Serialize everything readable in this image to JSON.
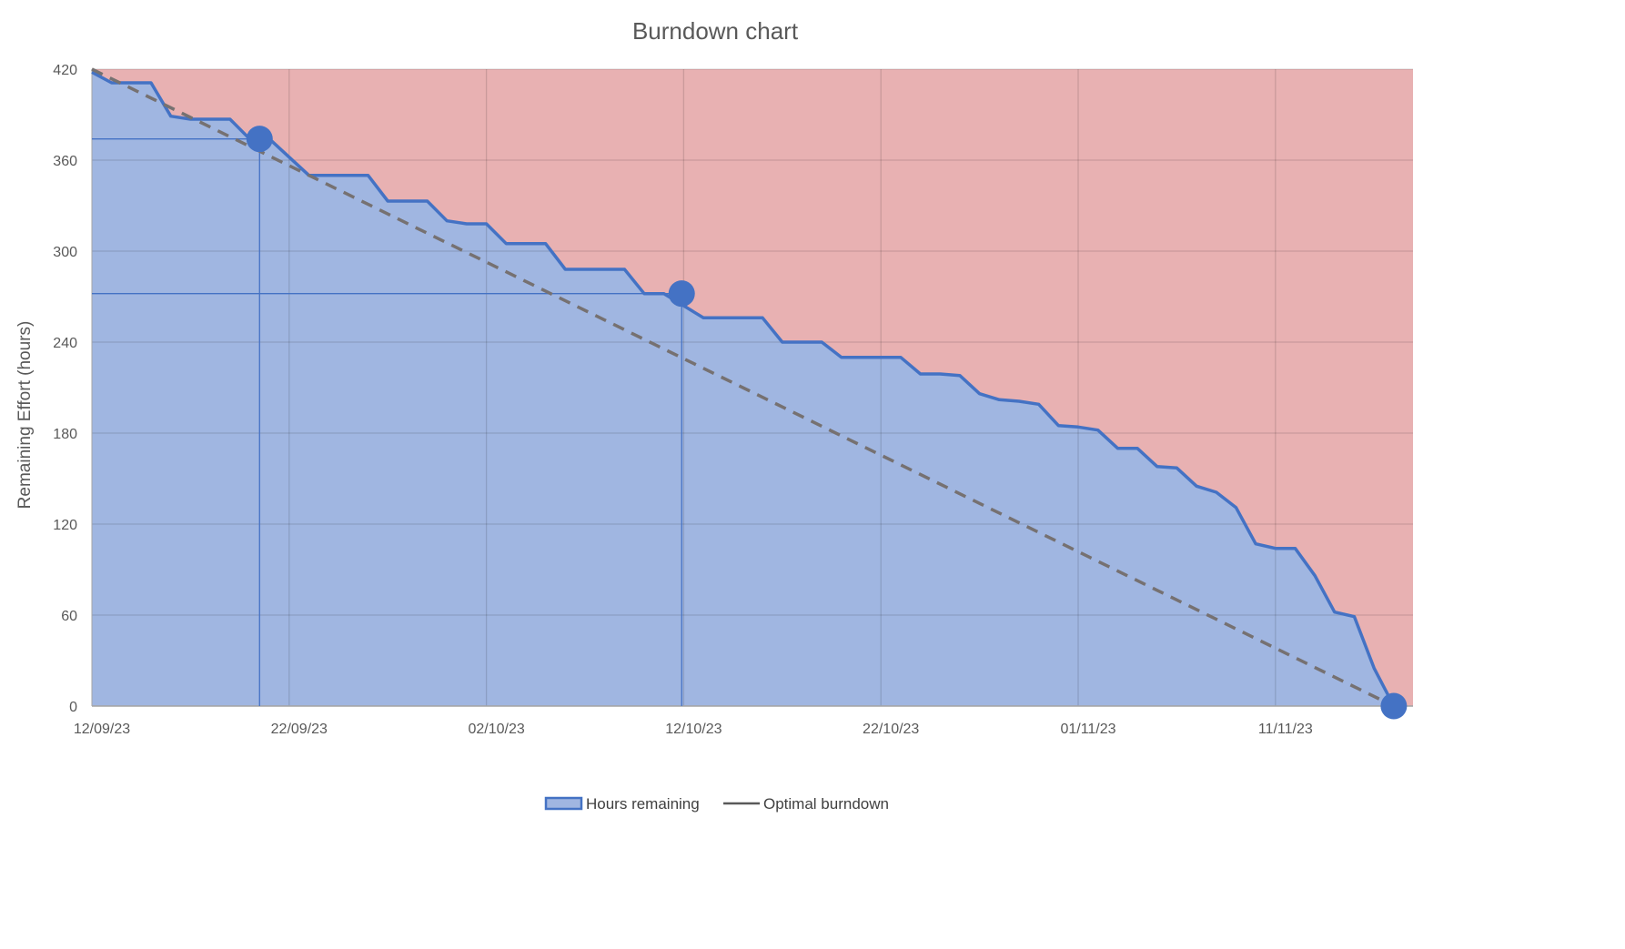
{
  "chart_data": {
    "type": "area",
    "title": "Burndown chart",
    "xlabel": "",
    "ylabel": "Remaining Effort (hours)",
    "ylim": [
      0,
      420
    ],
    "yticks": [
      0,
      60,
      120,
      180,
      240,
      300,
      360,
      420
    ],
    "xlim": [
      "2023-09-12",
      "2023-11-22"
    ],
    "xtick_labels": [
      "12/09/23",
      "22/09/23",
      "02/10/23",
      "12/10/23",
      "22/10/23",
      "01/11/23",
      "11/11/23"
    ],
    "xtick_dates": [
      "2023-09-12",
      "2023-09-22",
      "2023-10-02",
      "2023-10-12",
      "2023-10-22",
      "2023-11-01",
      "2023-11-11"
    ],
    "grid": true,
    "legend_position": "bottom",
    "series": [
      {
        "name": "Hours remaining",
        "kind": "area",
        "color": "#4472C4",
        "fill": "#A0B6E1",
        "points": [
          [
            "2023-09-12",
            418
          ],
          [
            "2023-09-13",
            411
          ],
          [
            "2023-09-14",
            411
          ],
          [
            "2023-09-15",
            411
          ],
          [
            "2023-09-16",
            389
          ],
          [
            "2023-09-17",
            387
          ],
          [
            "2023-09-18",
            387
          ],
          [
            "2023-09-19",
            387
          ],
          [
            "2023-09-20",
            374
          ],
          [
            "2023-09-21",
            374
          ],
          [
            "2023-09-22",
            362
          ],
          [
            "2023-09-23",
            350
          ],
          [
            "2023-09-24",
            350
          ],
          [
            "2023-09-25",
            350
          ],
          [
            "2023-09-26",
            350
          ],
          [
            "2023-09-27",
            333
          ],
          [
            "2023-09-28",
            333
          ],
          [
            "2023-09-29",
            333
          ],
          [
            "2023-09-30",
            320
          ],
          [
            "2023-10-01",
            318
          ],
          [
            "2023-10-02",
            318
          ],
          [
            "2023-10-03",
            305
          ],
          [
            "2023-10-04",
            305
          ],
          [
            "2023-10-05",
            305
          ],
          [
            "2023-10-06",
            288
          ],
          [
            "2023-10-07",
            288
          ],
          [
            "2023-10-08",
            288
          ],
          [
            "2023-10-09",
            288
          ],
          [
            "2023-10-10",
            272
          ],
          [
            "2023-10-11",
            272
          ],
          [
            "2023-10-13",
            256
          ],
          [
            "2023-10-14",
            256
          ],
          [
            "2023-10-15",
            256
          ],
          [
            "2023-10-16",
            256
          ],
          [
            "2023-10-17",
            240
          ],
          [
            "2023-10-18",
            240
          ],
          [
            "2023-10-19",
            240
          ],
          [
            "2023-10-20",
            230
          ],
          [
            "2023-10-21",
            230
          ],
          [
            "2023-10-22",
            230
          ],
          [
            "2023-10-23",
            230
          ],
          [
            "2023-10-24",
            219
          ],
          [
            "2023-10-25",
            219
          ],
          [
            "2023-10-26",
            218
          ],
          [
            "2023-10-27",
            206
          ],
          [
            "2023-10-28",
            202
          ],
          [
            "2023-10-29",
            201
          ],
          [
            "2023-10-30",
            199
          ],
          [
            "2023-10-31",
            185
          ],
          [
            "2023-11-01",
            184
          ],
          [
            "2023-11-02",
            182
          ],
          [
            "2023-11-03",
            170
          ],
          [
            "2023-11-04",
            170
          ],
          [
            "2023-11-05",
            158
          ],
          [
            "2023-11-06",
            157
          ],
          [
            "2023-11-07",
            145
          ],
          [
            "2023-11-08",
            141
          ],
          [
            "2023-11-09",
            131
          ],
          [
            "2023-11-10",
            107
          ],
          [
            "2023-11-11",
            104
          ],
          [
            "2023-11-12",
            104
          ],
          [
            "2023-11-13",
            86
          ],
          [
            "2023-11-14",
            62
          ],
          [
            "2023-11-15",
            59
          ],
          [
            "2023-11-16",
            25
          ],
          [
            "2023-11-17",
            0
          ]
        ]
      },
      {
        "name": "Optimal burndown",
        "kind": "line",
        "dash": true,
        "color": "#767171",
        "points": [
          [
            "2023-09-12",
            420
          ],
          [
            "2023-11-17",
            0
          ]
        ]
      }
    ],
    "highlights": [
      {
        "x": "2023-09-20.5",
        "y": 374
      },
      {
        "x": "2023-10-11.9",
        "y": 272
      },
      {
        "x": "2023-11-17",
        "y": 0
      }
    ],
    "background_above_color": "#E8B1B2"
  }
}
